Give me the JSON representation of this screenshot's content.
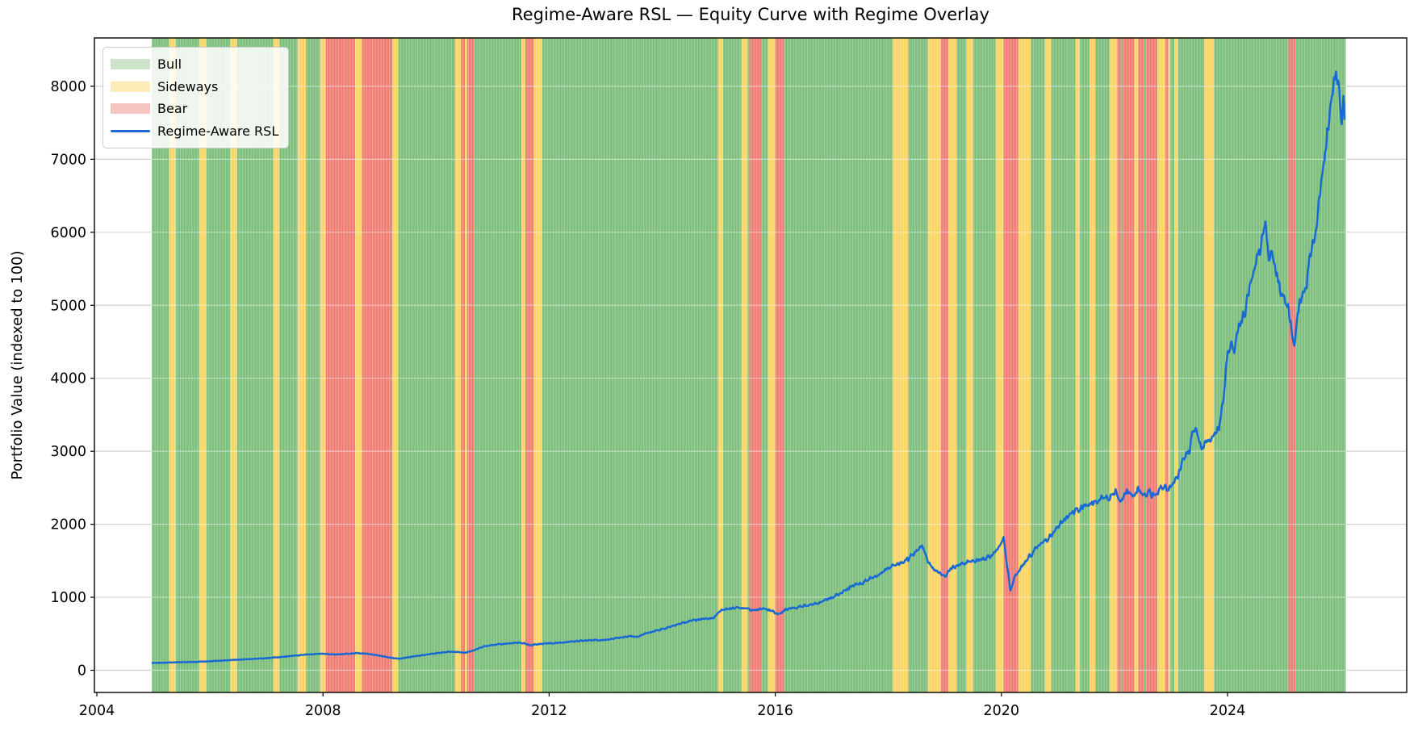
{
  "chart_data": {
    "type": "line",
    "title": "Regime-Aware RSL — Equity Curve with Regime Overlay",
    "xlabel": "",
    "ylabel": "Portfolio Value (indexed to 100)",
    "x_ticks": [
      2004,
      2008,
      2012,
      2016,
      2020,
      2024
    ],
    "y_ticks": [
      0,
      1000,
      2000,
      3000,
      4000,
      5000,
      6000,
      7000,
      8000
    ],
    "xlim": [
      2003.96,
      2027.12
    ],
    "ylim": [
      -300,
      8650
    ],
    "grid": "horizontal",
    "legend": {
      "position": "upper left",
      "entries": [
        {
          "label": "Bull",
          "type": "patch",
          "color": "#cde4cb"
        },
        {
          "label": "Sideways",
          "type": "patch",
          "color": "#fcecb8"
        },
        {
          "label": "Bear",
          "type": "patch",
          "color": "#f6c4c1"
        },
        {
          "label": "Regime-Aware RSL",
          "type": "line",
          "color": "#1769d6"
        }
      ]
    },
    "regime_colors": {
      "bull": "#7ebf7e",
      "sideways": "#f8d565",
      "bear": "#ef7e74"
    },
    "regimes": [
      [
        2004.97,
        2005.28,
        "bull"
      ],
      [
        2005.28,
        2005.4,
        "sideways"
      ],
      [
        2005.4,
        2005.81,
        "bull"
      ],
      [
        2005.81,
        2005.94,
        "sideways"
      ],
      [
        2005.94,
        2006.36,
        "bull"
      ],
      [
        2006.36,
        2006.48,
        "sideways"
      ],
      [
        2006.48,
        2007.12,
        "bull"
      ],
      [
        2007.12,
        2007.23,
        "sideways"
      ],
      [
        2007.23,
        2007.55,
        "bull"
      ],
      [
        2007.55,
        2007.7,
        "sideways"
      ],
      [
        2007.7,
        2007.95,
        "bull"
      ],
      [
        2007.95,
        2008.05,
        "sideways"
      ],
      [
        2008.05,
        2008.57,
        "bear"
      ],
      [
        2008.57,
        2008.69,
        "sideways"
      ],
      [
        2008.69,
        2009.23,
        "bear"
      ],
      [
        2009.23,
        2009.33,
        "sideways"
      ],
      [
        2009.33,
        2010.34,
        "bull"
      ],
      [
        2010.34,
        2010.44,
        "sideways"
      ],
      [
        2010.44,
        2010.51,
        "bear"
      ],
      [
        2010.51,
        2010.55,
        "sideways"
      ],
      [
        2010.55,
        2010.67,
        "bear"
      ],
      [
        2010.67,
        2011.51,
        "bull"
      ],
      [
        2011.51,
        2011.58,
        "sideways"
      ],
      [
        2011.58,
        2011.73,
        "bear"
      ],
      [
        2011.73,
        2011.88,
        "sideways"
      ],
      [
        2011.88,
        2014.99,
        "bull"
      ],
      [
        2014.99,
        2015.08,
        "sideways"
      ],
      [
        2015.08,
        2015.4,
        "bull"
      ],
      [
        2015.4,
        2015.51,
        "sideways"
      ],
      [
        2015.51,
        2015.54,
        "bull"
      ],
      [
        2015.54,
        2015.76,
        "bear"
      ],
      [
        2015.76,
        2015.87,
        "bull"
      ],
      [
        2015.87,
        2016.0,
        "sideways"
      ],
      [
        2016.0,
        2016.16,
        "bear"
      ],
      [
        2016.16,
        2018.08,
        "bull"
      ],
      [
        2018.08,
        2018.35,
        "sideways"
      ],
      [
        2018.35,
        2018.7,
        "bull"
      ],
      [
        2018.7,
        2018.93,
        "sideways"
      ],
      [
        2018.93,
        2019.06,
        "bear"
      ],
      [
        2019.06,
        2019.21,
        "sideways"
      ],
      [
        2019.21,
        2019.38,
        "bull"
      ],
      [
        2019.38,
        2019.5,
        "sideways"
      ],
      [
        2019.5,
        2019.9,
        "bull"
      ],
      [
        2019.9,
        2020.04,
        "sideways"
      ],
      [
        2020.04,
        2020.3,
        "bear"
      ],
      [
        2020.3,
        2020.52,
        "sideways"
      ],
      [
        2020.52,
        2020.77,
        "bull"
      ],
      [
        2020.77,
        2020.88,
        "sideways"
      ],
      [
        2020.88,
        2021.31,
        "bull"
      ],
      [
        2021.31,
        2021.39,
        "sideways"
      ],
      [
        2021.39,
        2021.56,
        "bull"
      ],
      [
        2021.56,
        2021.66,
        "sideways"
      ],
      [
        2021.66,
        2021.91,
        "bull"
      ],
      [
        2021.91,
        2022.05,
        "sideways"
      ],
      [
        2022.05,
        2022.11,
        "bear"
      ],
      [
        2022.11,
        2022.14,
        "bull"
      ],
      [
        2022.14,
        2022.35,
        "bear"
      ],
      [
        2022.35,
        2022.42,
        "sideways"
      ],
      [
        2022.42,
        2022.52,
        "bear"
      ],
      [
        2022.52,
        2022.56,
        "bull"
      ],
      [
        2022.56,
        2022.76,
        "bear"
      ],
      [
        2022.76,
        2022.9,
        "sideways"
      ],
      [
        2022.9,
        2022.95,
        "bear"
      ],
      [
        2022.95,
        2022.99,
        "sideways"
      ],
      [
        2022.99,
        2023.06,
        "bull"
      ],
      [
        2023.06,
        2023.13,
        "sideways"
      ],
      [
        2023.13,
        2023.59,
        "bull"
      ],
      [
        2023.59,
        2023.76,
        "sideways"
      ],
      [
        2023.76,
        2025.08,
        "bull"
      ],
      [
        2025.08,
        2025.21,
        "bear"
      ],
      [
        2025.21,
        2026.09,
        "bull"
      ]
    ],
    "series": [
      {
        "name": "Regime-Aware RSL",
        "color": "#1769d6",
        "points": [
          [
            2004.97,
            100
          ],
          [
            2005.2,
            104
          ],
          [
            2005.45,
            110
          ],
          [
            2005.7,
            114
          ],
          [
            2005.95,
            121
          ],
          [
            2006.2,
            131
          ],
          [
            2006.45,
            143
          ],
          [
            2006.7,
            152
          ],
          [
            2006.95,
            163
          ],
          [
            2007.2,
            178
          ],
          [
            2007.45,
            196
          ],
          [
            2007.7,
            214
          ],
          [
            2007.95,
            228
          ],
          [
            2008.1,
            221
          ],
          [
            2008.25,
            216
          ],
          [
            2008.4,
            224
          ],
          [
            2008.6,
            234
          ],
          [
            2008.75,
            228
          ],
          [
            2008.9,
            212
          ],
          [
            2009.05,
            192
          ],
          [
            2009.2,
            172
          ],
          [
            2009.35,
            158
          ],
          [
            2009.5,
            176
          ],
          [
            2009.65,
            194
          ],
          [
            2009.8,
            210
          ],
          [
            2009.95,
            228
          ],
          [
            2010.1,
            244
          ],
          [
            2010.25,
            254
          ],
          [
            2010.4,
            248
          ],
          [
            2010.5,
            240
          ],
          [
            2010.62,
            262
          ],
          [
            2010.75,
            298
          ],
          [
            2010.88,
            333
          ],
          [
            2011.0,
            348
          ],
          [
            2011.15,
            358
          ],
          [
            2011.3,
            368
          ],
          [
            2011.45,
            378
          ],
          [
            2011.55,
            372
          ],
          [
            2011.65,
            344
          ],
          [
            2011.78,
            356
          ],
          [
            2011.92,
            364
          ],
          [
            2012.1,
            372
          ],
          [
            2012.3,
            386
          ],
          [
            2012.5,
            400
          ],
          [
            2012.7,
            412
          ],
          [
            2012.9,
            410
          ],
          [
            2013.1,
            428
          ],
          [
            2013.3,
            455
          ],
          [
            2013.45,
            468
          ],
          [
            2013.55,
            452
          ],
          [
            2013.7,
            502
          ],
          [
            2013.85,
            532
          ],
          [
            2014.0,
            562
          ],
          [
            2014.15,
            598
          ],
          [
            2014.3,
            634
          ],
          [
            2014.45,
            668
          ],
          [
            2014.6,
            688
          ],
          [
            2014.75,
            700
          ],
          [
            2014.9,
            715
          ],
          [
            2015.05,
            822
          ],
          [
            2015.2,
            850
          ],
          [
            2015.35,
            860
          ],
          [
            2015.5,
            842
          ],
          [
            2015.62,
            818
          ],
          [
            2015.75,
            842
          ],
          [
            2015.88,
            828
          ],
          [
            2015.98,
            795
          ],
          [
            2016.07,
            764
          ],
          [
            2016.18,
            830
          ],
          [
            2016.35,
            858
          ],
          [
            2016.55,
            886
          ],
          [
            2016.75,
            922
          ],
          [
            2016.95,
            975
          ],
          [
            2017.15,
            1060
          ],
          [
            2017.35,
            1148
          ],
          [
            2017.55,
            1200
          ],
          [
            2017.75,
            1278
          ],
          [
            2017.95,
            1372
          ],
          [
            2018.1,
            1440
          ],
          [
            2018.25,
            1475
          ],
          [
            2018.4,
            1555
          ],
          [
            2018.55,
            1672
          ],
          [
            2018.62,
            1692
          ],
          [
            2018.7,
            1500
          ],
          [
            2018.8,
            1388
          ],
          [
            2018.9,
            1348
          ],
          [
            2019.0,
            1292
          ],
          [
            2019.1,
            1395
          ],
          [
            2019.25,
            1442
          ],
          [
            2019.4,
            1478
          ],
          [
            2019.55,
            1498
          ],
          [
            2019.7,
            1528
          ],
          [
            2019.85,
            1575
          ],
          [
            2019.97,
            1695
          ],
          [
            2020.04,
            1812
          ],
          [
            2020.1,
            1450
          ],
          [
            2020.16,
            1085
          ],
          [
            2020.24,
            1295
          ],
          [
            2020.33,
            1395
          ],
          [
            2020.45,
            1512
          ],
          [
            2020.58,
            1638
          ],
          [
            2020.7,
            1732
          ],
          [
            2020.82,
            1802
          ],
          [
            2020.93,
            1882
          ],
          [
            2021.05,
            2035
          ],
          [
            2021.18,
            2110
          ],
          [
            2021.32,
            2180
          ],
          [
            2021.45,
            2245
          ],
          [
            2021.58,
            2278
          ],
          [
            2021.7,
            2325
          ],
          [
            2021.82,
            2382
          ],
          [
            2021.92,
            2348
          ],
          [
            2022.02,
            2438
          ],
          [
            2022.12,
            2322
          ],
          [
            2022.22,
            2452
          ],
          [
            2022.32,
            2365
          ],
          [
            2022.42,
            2498
          ],
          [
            2022.52,
            2385
          ],
          [
            2022.62,
            2452
          ],
          [
            2022.72,
            2362
          ],
          [
            2022.82,
            2528
          ],
          [
            2022.92,
            2468
          ],
          [
            2023.02,
            2558
          ],
          [
            2023.12,
            2642
          ],
          [
            2023.22,
            2905
          ],
          [
            2023.32,
            2985
          ],
          [
            2023.4,
            3335
          ],
          [
            2023.47,
            3215
          ],
          [
            2023.54,
            3062
          ],
          [
            2023.64,
            3125
          ],
          [
            2023.75,
            3205
          ],
          [
            2023.85,
            3335
          ],
          [
            2023.93,
            3720
          ],
          [
            2024.0,
            4300
          ],
          [
            2024.06,
            4470
          ],
          [
            2024.12,
            4380
          ],
          [
            2024.2,
            4690
          ],
          [
            2024.3,
            4870
          ],
          [
            2024.4,
            5280
          ],
          [
            2024.48,
            5500
          ],
          [
            2024.55,
            5690
          ],
          [
            2024.62,
            5980
          ],
          [
            2024.67,
            6160
          ],
          [
            2024.73,
            5560
          ],
          [
            2024.79,
            5800
          ],
          [
            2024.86,
            5440
          ],
          [
            2024.93,
            5270
          ],
          [
            2025.0,
            5130
          ],
          [
            2025.07,
            4940
          ],
          [
            2025.13,
            4680
          ],
          [
            2025.18,
            4420
          ],
          [
            2025.24,
            4920
          ],
          [
            2025.32,
            5130
          ],
          [
            2025.4,
            5330
          ],
          [
            2025.47,
            5750
          ],
          [
            2025.54,
            5960
          ],
          [
            2025.61,
            6360
          ],
          [
            2025.68,
            6820
          ],
          [
            2025.75,
            7280
          ],
          [
            2025.81,
            7650
          ],
          [
            2025.87,
            7940
          ],
          [
            2025.93,
            8240
          ],
          [
            2025.99,
            7760
          ],
          [
            2026.02,
            7500
          ],
          [
            2026.05,
            7920
          ],
          [
            2026.07,
            7540
          ]
        ]
      }
    ]
  }
}
